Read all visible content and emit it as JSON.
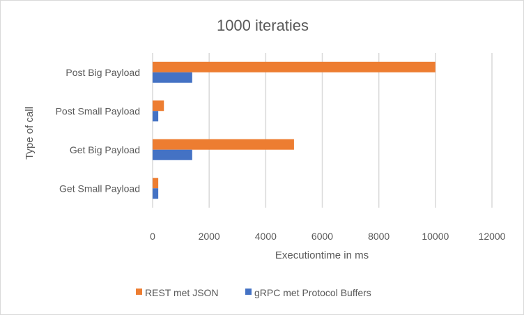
{
  "chart_data": {
    "type": "bar",
    "orientation": "horizontal",
    "title": "1000 iteraties",
    "xlabel": "Executiontime in ms",
    "ylabel": "Type of call",
    "categories": [
      "Get Small Payload",
      "Get Big Payload",
      "Post Small Payload",
      "Post Big Payload"
    ],
    "series": [
      {
        "name": "REST met JSON",
        "color": "#ed7d31",
        "values": [
          200,
          5000,
          400,
          10000
        ]
      },
      {
        "name": "gRPC met Protocol Buffers",
        "color": "#4472c4",
        "values": [
          200,
          1400,
          200,
          1400
        ]
      }
    ],
    "xlim": [
      0,
      12000
    ],
    "xticks": [
      0,
      2000,
      4000,
      6000,
      8000,
      10000,
      12000
    ],
    "grid": "vertical",
    "legend": "bottom"
  }
}
